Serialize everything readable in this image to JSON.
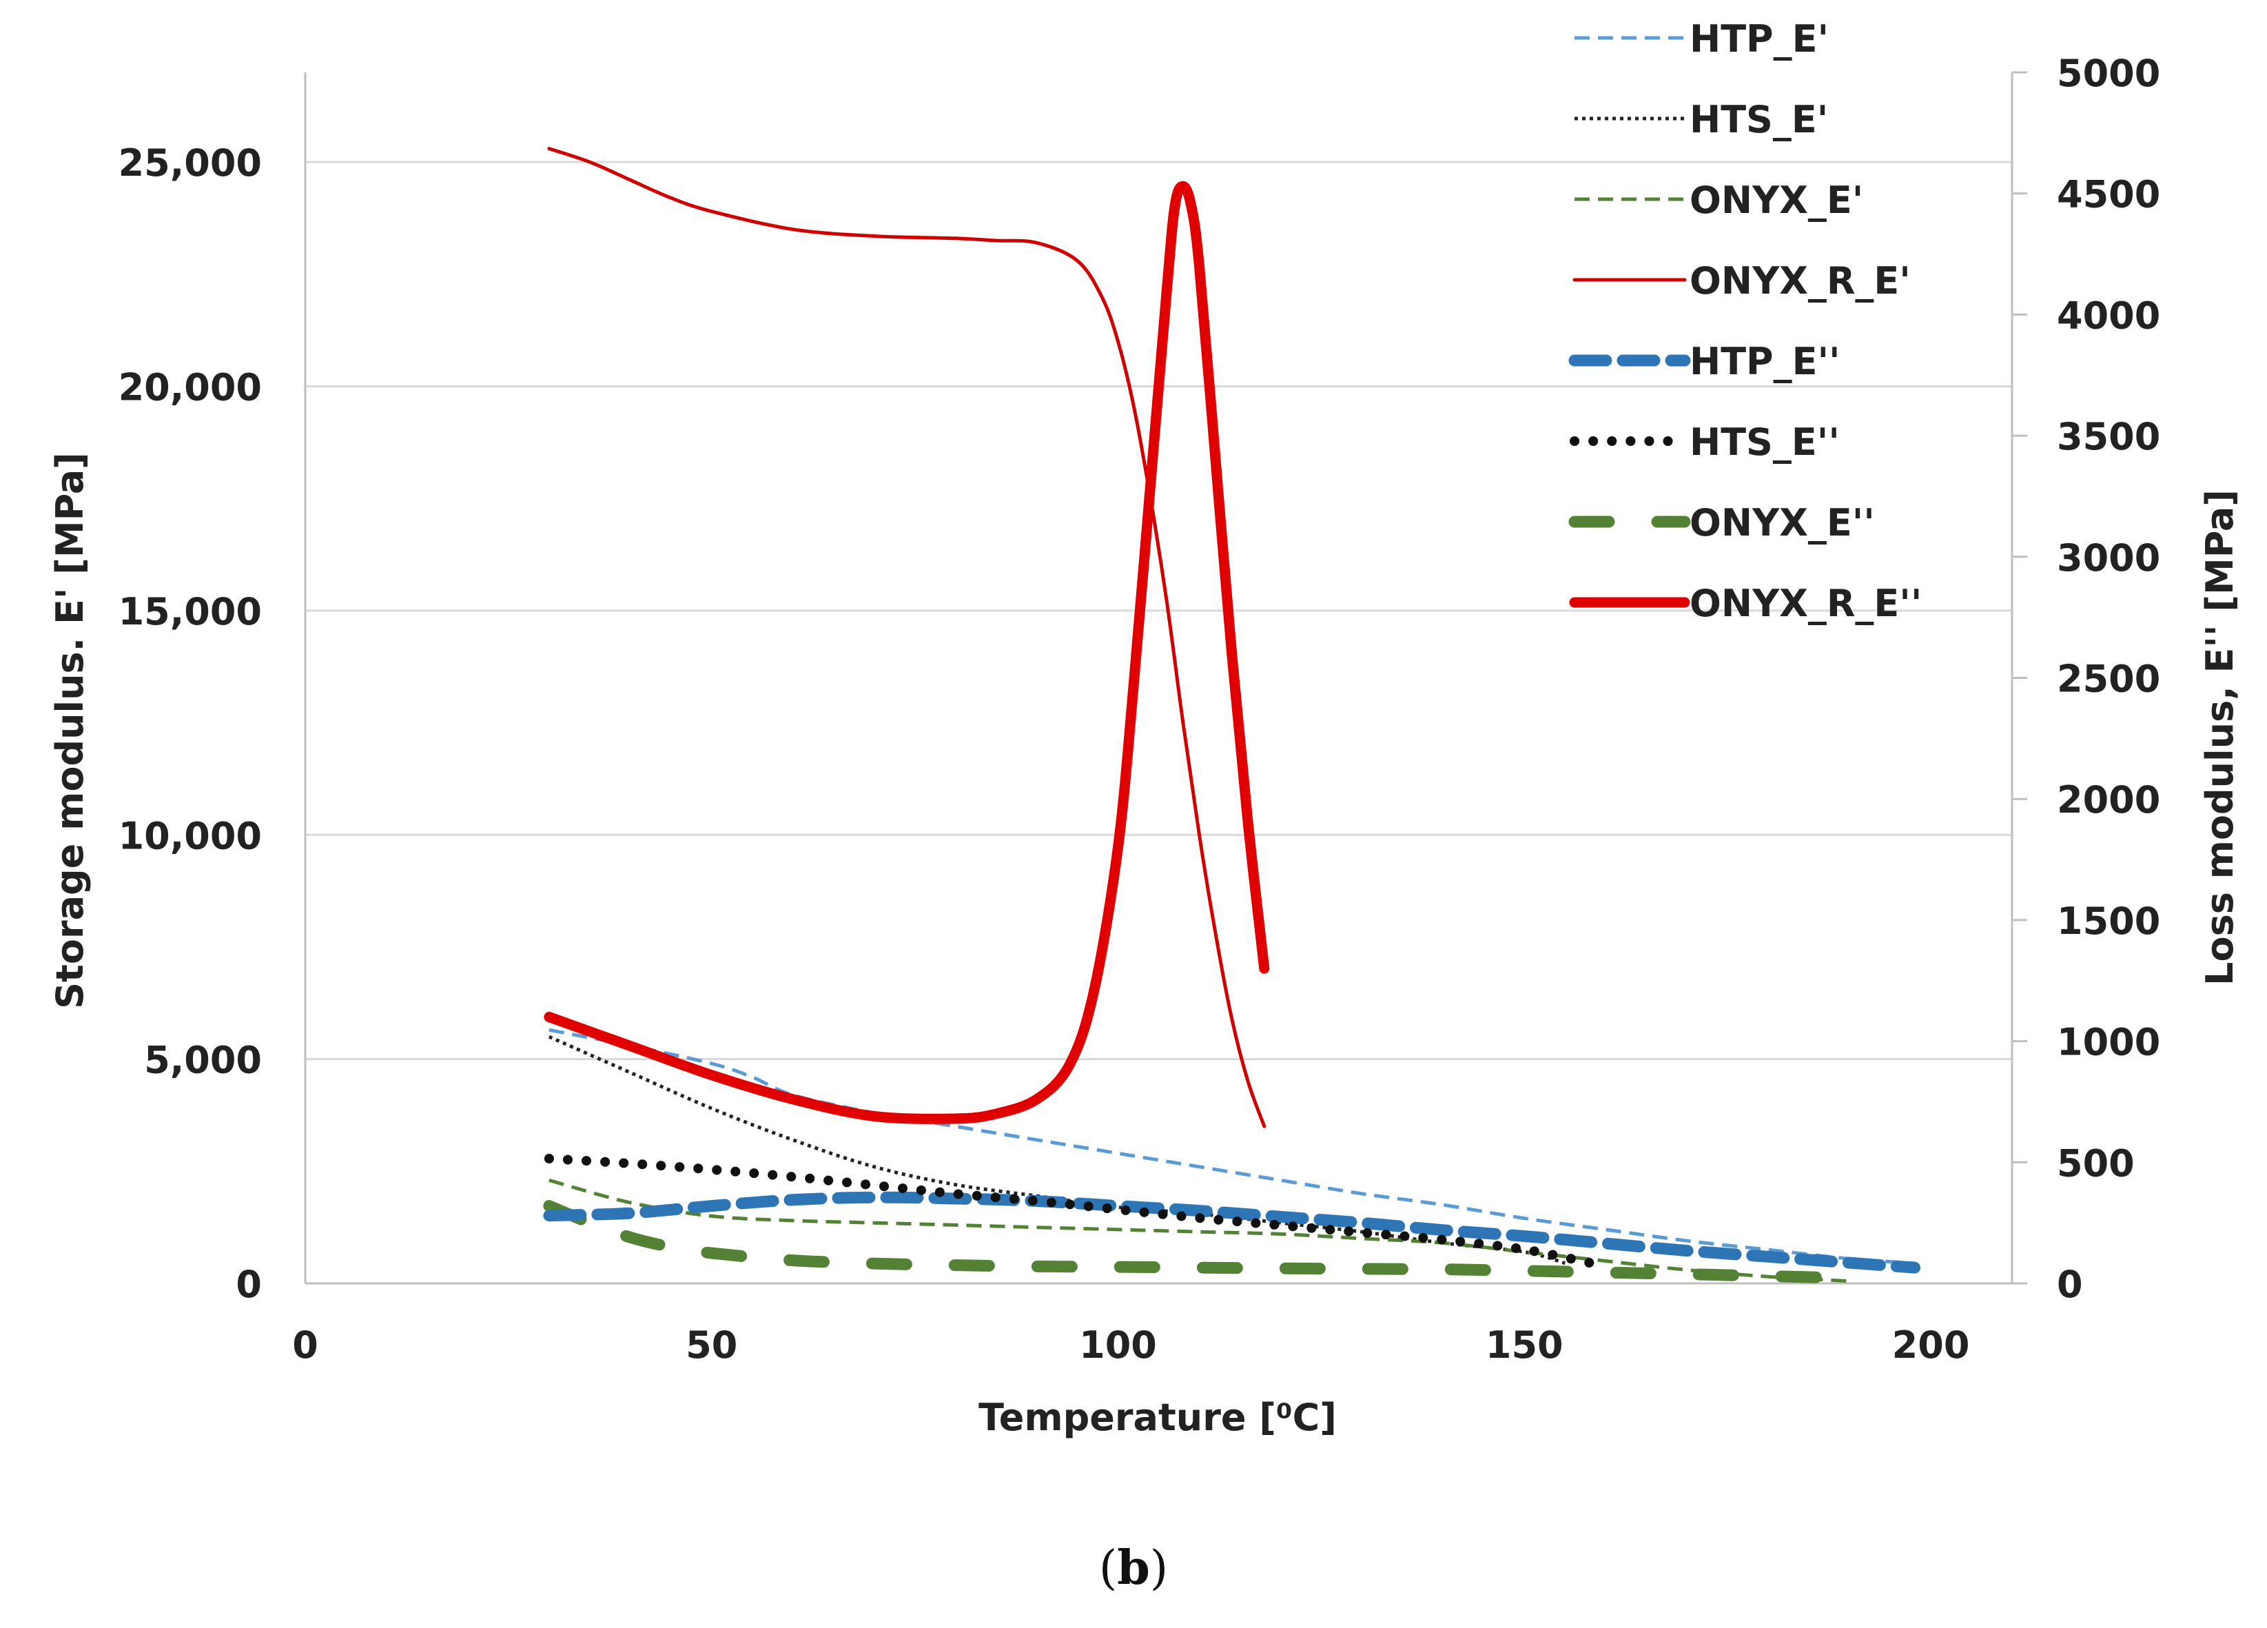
{
  "chart_data": {
    "type": "line",
    "xlabel": "Temperature [⁰C]",
    "ylabel_left": "Storage modulus. E' [MPa]",
    "ylabel_right": "Loss modulus, E'' [MPa]",
    "xlim": [
      0,
      210
    ],
    "xticks": [
      0,
      50,
      100,
      150,
      200
    ],
    "xtick_labels": [
      "0",
      "50",
      "100",
      "150",
      "200"
    ],
    "ylim_left": [
      0,
      27000
    ],
    "yticks_left": [
      0,
      5000,
      10000,
      15000,
      20000,
      25000
    ],
    "ytick_labels_left": [
      "0",
      "5,000",
      "10,000",
      "15,000",
      "20,000",
      "25,000"
    ],
    "ylim_right": [
      0,
      5000
    ],
    "yticks_right": [
      0,
      500,
      1000,
      1500,
      2000,
      2500,
      3000,
      3500,
      4000,
      4500,
      5000
    ],
    "ytick_labels_right": [
      "0",
      "500",
      "1000",
      "1500",
      "2000",
      "2500",
      "3000",
      "3500",
      "4000",
      "4500",
      "5000"
    ],
    "grid": true,
    "legend_position": "top-right",
    "series": [
      {
        "name": "HTP_E'",
        "axis": "left",
        "color": "#5b9bd5",
        "style": "thin-dash",
        "x": [
          30,
          40,
          50,
          55,
          60,
          70,
          80,
          90,
          100,
          110,
          120,
          130,
          140,
          150,
          160,
          170,
          180,
          190,
          198
        ],
        "values": [
          5650,
          5300,
          4900,
          4600,
          4200,
          3800,
          3500,
          3200,
          2900,
          2600,
          2300,
          2000,
          1750,
          1450,
          1200,
          950,
          750,
          550,
          450
        ]
      },
      {
        "name": "HTS_E'",
        "axis": "left",
        "color": "#222222",
        "style": "thin-dot",
        "x": [
          30,
          40,
          50,
          60,
          70,
          80,
          90,
          100,
          110,
          120,
          130,
          140,
          150,
          155
        ],
        "values": [
          5500,
          4700,
          3900,
          3200,
          2600,
          2200,
          1950,
          1700,
          1550,
          1350,
          1150,
          900,
          700,
          450
        ]
      },
      {
        "name": "ONYX_E'",
        "axis": "left",
        "color": "#548235",
        "style": "thin-dash",
        "x": [
          30,
          40,
          50,
          60,
          70,
          80,
          90,
          100,
          110,
          120,
          130,
          140,
          150,
          160,
          170,
          180,
          190
        ],
        "values": [
          2300,
          1800,
          1500,
          1400,
          1350,
          1300,
          1250,
          1200,
          1150,
          1100,
          1000,
          900,
          700,
          500,
          300,
          150,
          50
        ]
      },
      {
        "name": "ONYX_R_E'",
        "axis": "left",
        "color": "#d00000",
        "style": "thin-solid",
        "x": [
          30,
          35,
          40,
          45,
          50,
          60,
          70,
          80,
          85,
          90,
          95,
          98,
          100,
          102,
          104,
          106,
          108,
          110,
          112,
          114,
          116,
          118
        ],
        "values": [
          25300,
          25000,
          24600,
          24200,
          23900,
          23500,
          23350,
          23300,
          23250,
          23200,
          22800,
          22000,
          21000,
          19500,
          17500,
          15200,
          12500,
          10000,
          7800,
          5900,
          4500,
          3500
        ]
      },
      {
        "name": "HTP_E''",
        "axis": "right",
        "color": "#2e75b6",
        "style": "thick-dash",
        "x": [
          30,
          40,
          50,
          60,
          70,
          80,
          90,
          100,
          110,
          120,
          130,
          140,
          150,
          160,
          170,
          180,
          190,
          198
        ],
        "values": [
          280,
          290,
          320,
          345,
          355,
          350,
          340,
          320,
          300,
          275,
          250,
          220,
          195,
          165,
          135,
          110,
          85,
          65
        ]
      },
      {
        "name": "HTS_E''",
        "axis": "right",
        "color": "#111111",
        "style": "thick-dot",
        "x": [
          30,
          40,
          50,
          60,
          70,
          80,
          90,
          100,
          110,
          120,
          130,
          140,
          150,
          158
        ],
        "values": [
          515,
          495,
          470,
          440,
          405,
          370,
          340,
          305,
          270,
          240,
          210,
          180,
          140,
          85
        ]
      },
      {
        "name": "ONYX_E''",
        "axis": "right",
        "color": "#548235",
        "style": "thick-dash",
        "x": [
          30,
          35,
          40,
          45,
          50,
          60,
          70,
          80,
          90,
          100,
          110,
          120,
          130,
          140,
          150,
          160,
          170,
          180,
          190
        ],
        "values": [
          320,
          250,
          190,
          150,
          125,
          95,
          82,
          75,
          70,
          68,
          65,
          62,
          60,
          58,
          52,
          45,
          38,
          30,
          22
        ]
      },
      {
        "name": "ONYX_R_E''",
        "axis": "right",
        "color": "#e00000",
        "style": "thick-solid",
        "x": [
          30,
          40,
          50,
          60,
          70,
          80,
          85,
          90,
          94,
          97,
          100,
          102,
          104,
          106,
          107,
          108,
          109,
          110,
          112,
          114,
          116,
          118
        ],
        "values": [
          1100,
          980,
          860,
          760,
          690,
          680,
          700,
          760,
          900,
          1200,
          1800,
          2500,
          3300,
          4100,
          4450,
          4530,
          4450,
          4200,
          3400,
          2600,
          1900,
          1300
        ]
      }
    ]
  },
  "caption": {
    "text": "b"
  }
}
